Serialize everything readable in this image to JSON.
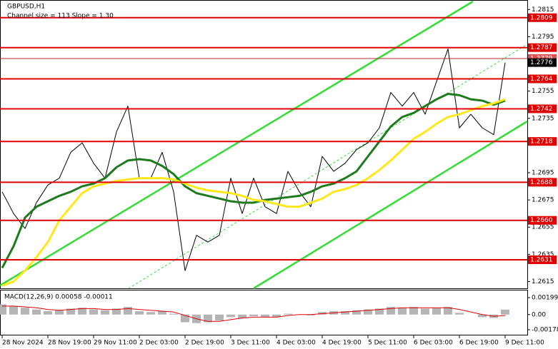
{
  "chart_data": [
    {
      "type": "line",
      "title": "GBPUSD,H1",
      "subtitle": "Channel size = 113 Slope = 1.30",
      "categories": [
        "28 Nov 2024",
        null,
        null,
        null,
        "28 Nov 19:00",
        null,
        null,
        null,
        "29 Nov 11:00",
        null,
        null,
        null,
        "2 Dec 03:00",
        null,
        null,
        null,
        "2 Dec 19:00",
        null,
        null,
        null,
        "3 Dec 11:00",
        null,
        null,
        null,
        "4 Dec 03:00",
        null,
        null,
        null,
        "4 Dec 19:00",
        null,
        null,
        null,
        "5 Dec 11:00",
        null,
        null,
        null,
        "6 Dec 03:00",
        null,
        null,
        null,
        "6 Dec 19:00",
        null,
        null,
        null,
        "9 Dec 11:00"
      ],
      "series": [
        {
          "color": "#000000",
          "values": [
            1.2681,
            1.2665,
            1.2654,
            1.2673,
            1.2686,
            1.2691,
            1.271,
            1.2717,
            1.2702,
            1.2691,
            1.2725,
            1.2744,
            1.2691,
            1.2691,
            1.271,
            1.2681,
            1.2623,
            1.2649,
            1.2644,
            1.2649,
            1.2691,
            1.2665,
            1.2691,
            1.267,
            1.2665,
            1.2696,
            1.2681,
            1.267,
            1.2707,
            1.2696,
            1.2702,
            1.2712,
            1.2717,
            1.2728,
            1.2754,
            1.2744,
            1.2754,
            1.2738,
            1.2762,
            1.2786,
            1.2728,
            1.2738,
            1.2728,
            1.2723,
            1.2776
          ]
        },
        {
          "color": "#1d7a1d",
          "values": [
            1.2625,
            1.2641,
            1.2662,
            1.267,
            1.2674,
            1.2678,
            1.2681,
            1.2685,
            1.2687,
            1.2691,
            1.2699,
            1.2704,
            1.2705,
            1.2704,
            1.27,
            1.2694,
            1.2685,
            1.268,
            1.2678,
            1.2676,
            1.2674,
            1.2673,
            1.2673,
            1.2675,
            1.2676,
            1.2677,
            1.2678,
            1.2681,
            1.2685,
            1.2687,
            1.2691,
            1.2696,
            1.2707,
            1.2718,
            1.2729,
            1.2736,
            1.2739,
            1.2744,
            1.2749,
            1.2753,
            1.2752,
            1.2749,
            1.2748,
            1.2745,
            1.2748
          ]
        },
        {
          "color": "#ffe81a",
          "values": [
            1.2612,
            1.2615,
            1.2623,
            1.2633,
            1.2644,
            1.266,
            1.267,
            1.268,
            1.2685,
            1.2687,
            1.2689,
            1.269,
            1.2691,
            1.2691,
            1.2691,
            1.269,
            1.2687,
            1.2684,
            1.2682,
            1.2681,
            1.268,
            1.2678,
            1.2675,
            1.2674,
            1.2672,
            1.267,
            1.267,
            1.2673,
            1.2676,
            1.2681,
            1.2683,
            1.2686,
            1.2691,
            1.2697,
            1.2704,
            1.2712,
            1.272,
            1.2725,
            1.2731,
            1.2736,
            1.2738,
            1.2741,
            1.2744,
            1.2746,
            1.2749
          ]
        }
      ],
      "ylim": [
        1.261,
        1.2822
      ],
      "yticks": [
        1.2615,
        1.2635,
        1.2655,
        1.2675,
        1.2695,
        1.2735,
        1.2755,
        1.2795,
        1.2815
      ],
      "levels": [
        1.2809,
        1.2787,
        1.2764,
        1.2742,
        1.2718,
        1.2688,
        {
          "value": 1.266,
          "label": "1.2660"
        },
        1.2631
      ],
      "level_color": "#e00000",
      "previous_close": 1.2779,
      "current_price": 1.2776
    },
    {
      "type": "macd",
      "title": "MACD(12,26,9) 0.00058 -0.00011",
      "series": [
        {
          "color": "#b4b4b4",
          "values": [
            0.0012,
            0.001,
            0.0008,
            0.0006,
            0.0004,
            0.0005,
            0.0007,
            0.0008,
            0.0006,
            0.0005,
            0.0007,
            0.0009,
            0.0004,
            0.0003,
            0.0004,
            0.0001,
            -0.0009,
            -0.001,
            -0.0009,
            -0.0007,
            -0.0003,
            -0.0004,
            -0.0002,
            -0.0003,
            -0.0003,
            0.0001,
            0,
            -0.0001,
            0.0003,
            0.0004,
            0.0004,
            0.0005,
            0.0006,
            0.0007,
            0.0009,
            0.0008,
            0.0009,
            0.0007,
            0.0008,
            0.0009,
            0.0002,
            0,
            -0.0003,
            -0.0004,
            0.00058
          ]
        },
        {
          "color": "#e00000",
          "values": [
            0.001,
            0.001,
            0.0009,
            0.0008,
            0.0006,
            0.0005,
            0.0006,
            0.0007,
            0.0007,
            0.0006,
            0.0006,
            0.0007,
            0.0006,
            0.0005,
            0.0004,
            0.0003,
            -0.0001,
            -0.0005,
            -0.0008,
            -0.0008,
            -0.0006,
            -0.0004,
            -0.0003,
            -0.0003,
            -0.0003,
            -0.0001,
            0,
            0,
            0.0001,
            0.0002,
            0.0003,
            0.0004,
            0.0005,
            0.0006,
            0.0007,
            0.0008,
            0.0008,
            0.0008,
            0.0008,
            0.0008,
            0.0006,
            0.0003,
            0,
            -0.0002,
            -0.00011
          ]
        }
      ],
      "ylim": [
        -0.00178,
        0.00199
      ],
      "yticks": [
        -0.00178,
        {
          "value": 0,
          "label": "0.00"
        },
        0.00199
      ]
    }
  ]
}
